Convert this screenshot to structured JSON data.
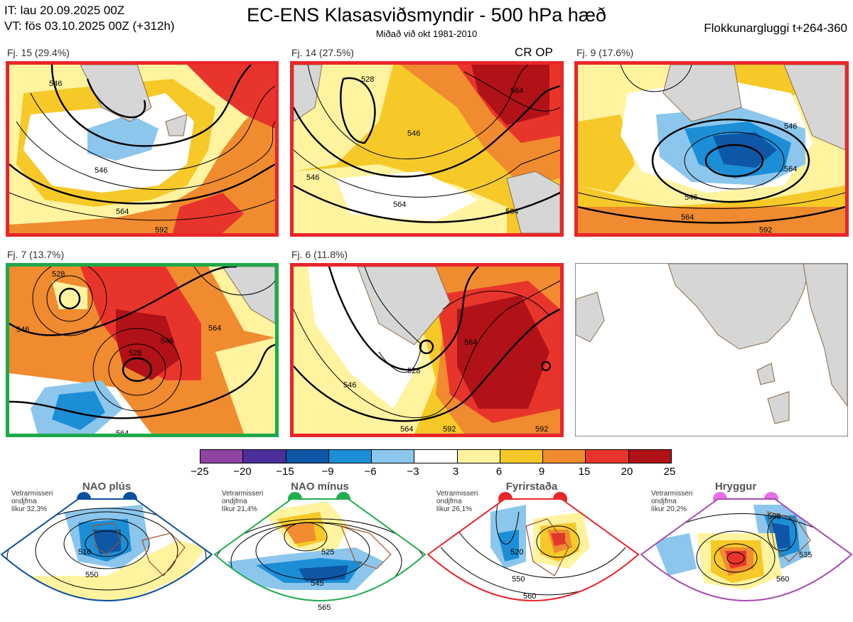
{
  "header": {
    "it_line": "IT: lau 20.09.2025 00Z",
    "vt_line": "VT: fös 03.10.2025 00Z  (+312h)",
    "title": "EC-ENS Klasasviðsmyndir - 500 hPa hæð",
    "subtitle": "Miðað við okt 1981-2010",
    "window": "Flokkunargluggi t+264-360"
  },
  "colors": {
    "border_red": "#e8262a",
    "border_green": "#1fa84a",
    "land": "#d6d6d6",
    "coast": "#8a6a4a"
  },
  "clusters": [
    {
      "label": "Fj. 15 (29.4%)",
      "border": "red",
      "contours": [
        "546",
        "546",
        "564",
        "592"
      ]
    },
    {
      "label": "Fj. 14 (27.5%)",
      "border": "red",
      "tag": "CR OP",
      "contours": [
        "528",
        "546",
        "546",
        "564",
        "564",
        "564"
      ]
    },
    {
      "label": "Fj. 9 (17.6%)",
      "border": "red",
      "contours": [
        "546",
        "564",
        "546",
        "564",
        "592"
      ]
    },
    {
      "label": "Fj. 7 (13.7%)",
      "border": "green",
      "contours": [
        "528",
        "546",
        "528",
        "546",
        "564",
        "564"
      ]
    },
    {
      "label": "Fj. 6 (11.8%)",
      "border": "red",
      "contours": [
        "528",
        "546",
        "564",
        "564",
        "592",
        "592"
      ]
    }
  ],
  "colorbar": {
    "ticks": [
      "−25",
      "−20",
      "−15",
      "−9",
      "−6",
      "−3",
      "3",
      "6",
      "9",
      "15",
      "20",
      "25"
    ],
    "colors": [
      "#8e44a0",
      "#4b2e9a",
      "#0e57a6",
      "#1c8ed6",
      "#8cc6ec",
      "#ffffff",
      "#fff3a0",
      "#f6c928",
      "#f08b30",
      "#e8352c",
      "#b01218"
    ]
  },
  "regimes": [
    {
      "title": "NAO plús",
      "sub": [
        "Vetrarmisseri",
        "ondjfma",
        "líkur 32,3%"
      ],
      "color": "#0b4f9e",
      "contours": [
        "510",
        "550"
      ]
    },
    {
      "title": "NAO mínus",
      "sub": [
        "Vetrarmisseri",
        "ondjfma",
        "líkur 21,4%"
      ],
      "color": "#22ad4f",
      "contours": [
        "525",
        "545",
        "565"
      ]
    },
    {
      "title": "Fyrirstaða",
      "sub": [
        "Vetrarmisseri",
        "ondjfma",
        "líkur 26,1%"
      ],
      "color": "#e8262a",
      "contours": [
        "520",
        "550",
        "560"
      ]
    },
    {
      "title": "Hryggur",
      "sub": [
        "Vetrarmisseri",
        "ondjfma",
        "líkur 20,2%"
      ],
      "color": "#e86ee6",
      "contours": [
        "505",
        "535",
        "560"
      ]
    }
  ]
}
